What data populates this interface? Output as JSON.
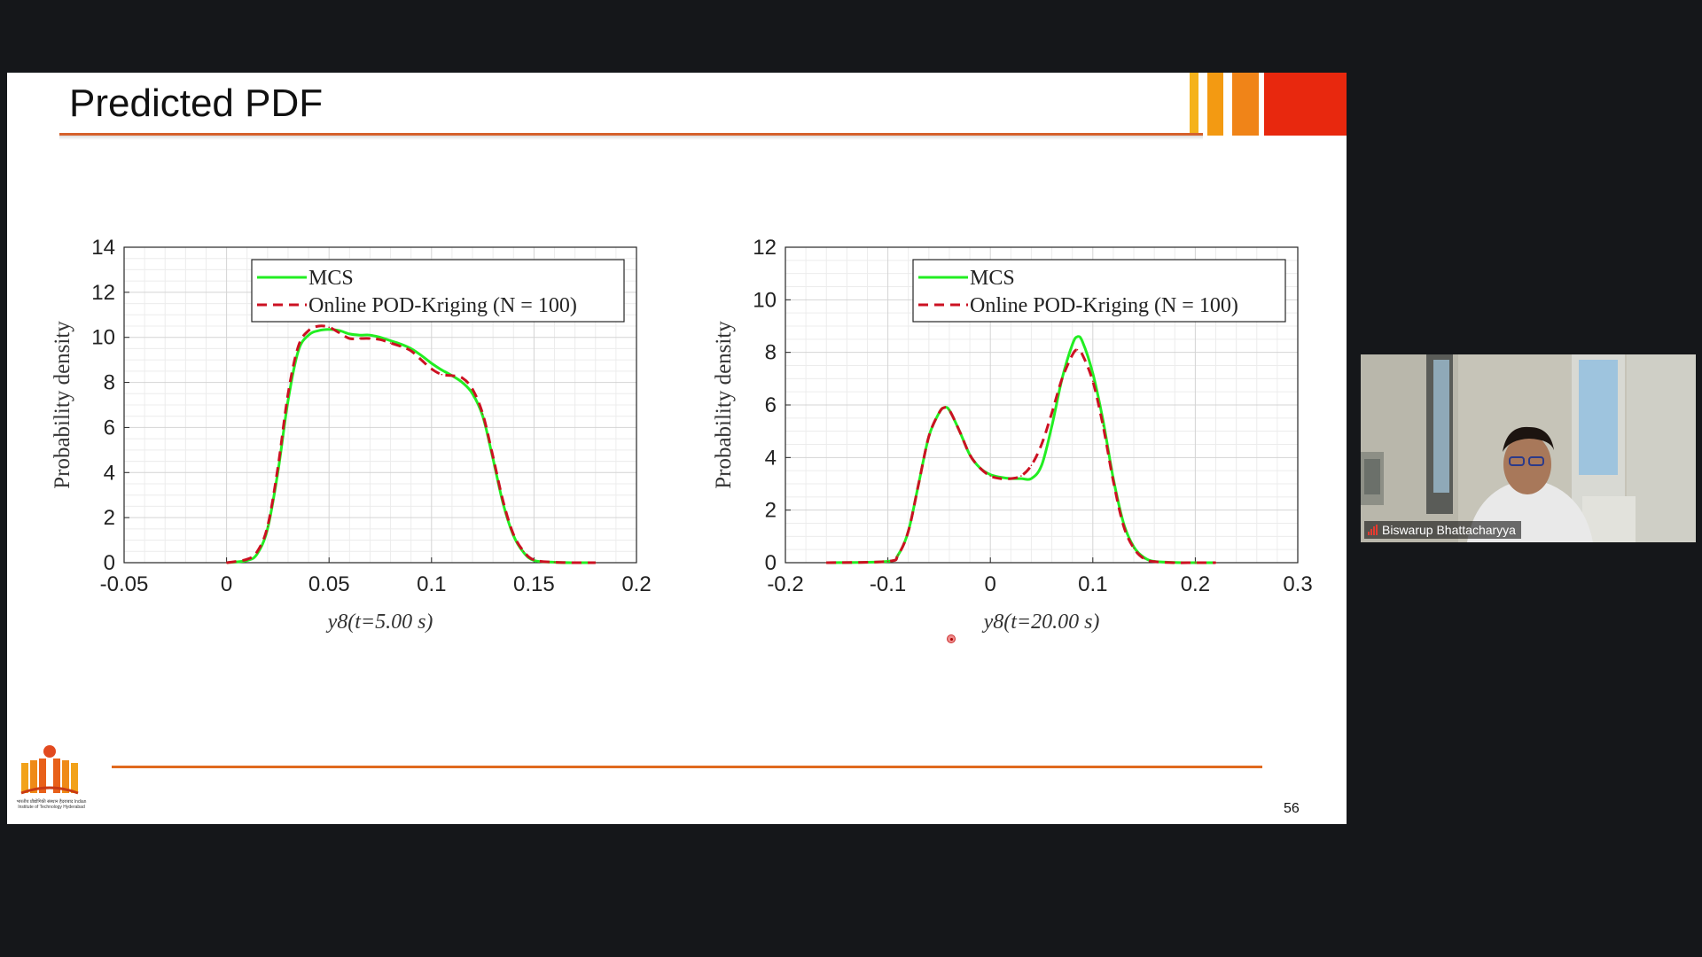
{
  "slide": {
    "title": "Predicted PDF",
    "page_number": "56",
    "logo_caption": "भारतीय प्रौद्योगिकी संस्थान हैदराबाद Indian Institute of Technology Hyderabad",
    "colors": {
      "title_rule": "#d5612b",
      "bottom_rule": "#e06a1f",
      "deco": [
        "#f5b21a",
        "#f39a12",
        "#f08418",
        "#e8280e"
      ]
    }
  },
  "participant": {
    "name": "Biswarup Bhattacharyya",
    "icon": "signal-strength-icon"
  },
  "chart_data": [
    {
      "type": "line",
      "xlabel": "y8(t=5.00 s)",
      "ylabel": "Probability density",
      "xlim": [
        -0.05,
        0.2
      ],
      "ylim": [
        0,
        14
      ],
      "xticks": [
        "-0.05",
        "0",
        "0.05",
        "0.1",
        "0.15",
        "0.2"
      ],
      "yticks": [
        "0",
        "2",
        "4",
        "6",
        "8",
        "10",
        "12",
        "14"
      ],
      "grid": true,
      "legend_position": "top-right",
      "series": [
        {
          "name": "MCS",
          "color": "#22ee22",
          "style": "solid",
          "x": [
            0,
            0.01,
            0.015,
            0.02,
            0.025,
            0.03,
            0.035,
            0.04,
            0.045,
            0.05,
            0.055,
            0.06,
            0.065,
            0.07,
            0.075,
            0.08,
            0.085,
            0.09,
            0.095,
            0.1,
            0.105,
            0.11,
            0.115,
            0.12,
            0.125,
            0.13,
            0.135,
            0.14,
            0.145,
            0.15,
            0.16,
            0.17,
            0.18
          ],
          "y": [
            0,
            0.1,
            0.4,
            1.5,
            4.0,
            7.2,
            9.4,
            10.1,
            10.3,
            10.35,
            10.3,
            10.15,
            10.1,
            10.1,
            10.0,
            9.85,
            9.7,
            9.5,
            9.2,
            8.85,
            8.55,
            8.3,
            8.0,
            7.5,
            6.5,
            4.6,
            2.6,
            1.2,
            0.45,
            0.1,
            0.02,
            0,
            0
          ]
        },
        {
          "name": "Online POD-Kriging (N = 100)",
          "color": "#cc1122",
          "style": "dashed",
          "x": [
            0,
            0.01,
            0.015,
            0.02,
            0.025,
            0.03,
            0.035,
            0.04,
            0.045,
            0.05,
            0.055,
            0.06,
            0.065,
            0.07,
            0.075,
            0.08,
            0.085,
            0.09,
            0.095,
            0.1,
            0.105,
            0.11,
            0.115,
            0.12,
            0.125,
            0.13,
            0.135,
            0.14,
            0.145,
            0.15,
            0.16,
            0.17,
            0.18
          ],
          "y": [
            0,
            0.15,
            0.5,
            1.6,
            4.2,
            7.5,
            9.6,
            10.3,
            10.5,
            10.45,
            10.2,
            9.95,
            9.95,
            9.95,
            9.9,
            9.75,
            9.6,
            9.4,
            9.0,
            8.6,
            8.35,
            8.3,
            8.2,
            7.7,
            6.6,
            4.7,
            2.7,
            1.25,
            0.5,
            0.12,
            0.02,
            0,
            0
          ]
        }
      ]
    },
    {
      "type": "line",
      "xlabel": "y8(t=20.00 s)",
      "ylabel": "Probability density",
      "xlim": [
        -0.2,
        0.3
      ],
      "ylim": [
        0,
        12
      ],
      "xticks": [
        "-0.2",
        "-0.1",
        "0",
        "0.1",
        "0.2",
        "0.3"
      ],
      "yticks": [
        "0",
        "2",
        "4",
        "6",
        "8",
        "10",
        "12"
      ],
      "grid": true,
      "legend_position": "top-right",
      "series": [
        {
          "name": "MCS",
          "color": "#22ee22",
          "style": "solid",
          "x": [
            -0.16,
            -0.1,
            -0.09,
            -0.08,
            -0.07,
            -0.06,
            -0.05,
            -0.045,
            -0.04,
            -0.03,
            -0.02,
            -0.01,
            0,
            0.01,
            0.02,
            0.03,
            0.04,
            0.05,
            0.06,
            0.07,
            0.08,
            0.085,
            0.09,
            0.1,
            0.11,
            0.12,
            0.13,
            0.14,
            0.15,
            0.16,
            0.18,
            0.2,
            0.22
          ],
          "y": [
            0,
            0.05,
            0.3,
            1.2,
            3.0,
            4.8,
            5.7,
            5.9,
            5.8,
            5.0,
            4.1,
            3.6,
            3.35,
            3.25,
            3.2,
            3.2,
            3.2,
            3.7,
            5.2,
            7.0,
            8.3,
            8.6,
            8.4,
            7.2,
            5.4,
            3.2,
            1.5,
            0.6,
            0.2,
            0.05,
            0.01,
            0,
            0
          ]
        },
        {
          "name": "Online POD-Kriging (N = 100)",
          "color": "#cc1122",
          "style": "dashed",
          "x": [
            -0.16,
            -0.1,
            -0.09,
            -0.08,
            -0.07,
            -0.06,
            -0.05,
            -0.045,
            -0.04,
            -0.03,
            -0.02,
            -0.01,
            0,
            0.01,
            0.02,
            0.03,
            0.04,
            0.05,
            0.06,
            0.07,
            0.08,
            0.085,
            0.09,
            0.1,
            0.11,
            0.12,
            0.13,
            0.14,
            0.15,
            0.16,
            0.18,
            0.2,
            0.22
          ],
          "y": [
            0,
            0.05,
            0.3,
            1.2,
            3.0,
            4.8,
            5.7,
            5.9,
            5.8,
            5.0,
            4.1,
            3.6,
            3.3,
            3.2,
            3.2,
            3.3,
            3.7,
            4.5,
            5.7,
            7.0,
            7.9,
            8.1,
            7.9,
            6.9,
            5.2,
            3.1,
            1.4,
            0.55,
            0.15,
            0.04,
            0,
            0,
            0
          ]
        }
      ]
    }
  ]
}
